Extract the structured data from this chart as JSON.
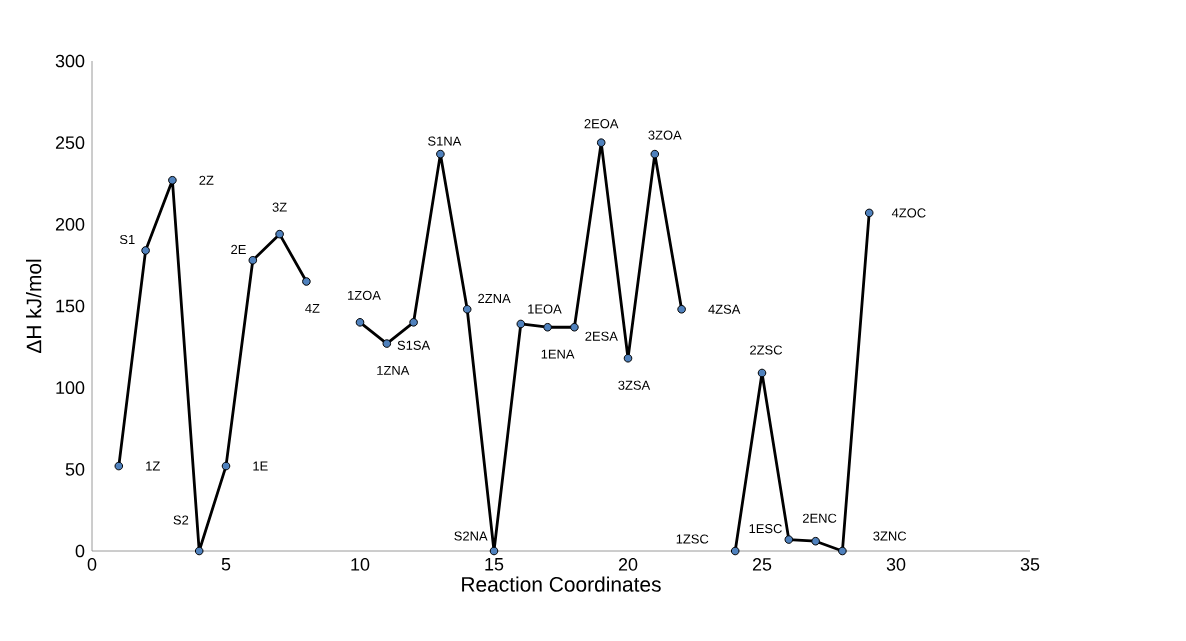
{
  "chart_data": {
    "type": "line",
    "xlabel": "Reaction Coordinates",
    "ylabel": "ΔH kJ/mol",
    "x": [
      1,
      2,
      3,
      4,
      5,
      6,
      7,
      8,
      9,
      10,
      11,
      12,
      13,
      14,
      15,
      16,
      17,
      18,
      19,
      20,
      21,
      22,
      23,
      24,
      25,
      26,
      27,
      28,
      29
    ],
    "values": [
      52,
      184,
      227,
      0,
      52,
      178,
      194,
      165,
      null,
      140,
      127,
      140,
      243,
      148,
      0,
      139,
      137,
      137,
      250,
      118,
      243,
      148,
      null,
      0,
      109,
      7,
      6,
      0,
      207
    ],
    "color": "#000000",
    "marker": "circle",
    "xlim": [
      0,
      35
    ],
    "ylim": [
      0,
      300
    ],
    "xticks": [
      0,
      5,
      10,
      15,
      20,
      25,
      30,
      35
    ],
    "yticks": [
      0,
      50,
      100,
      150,
      200,
      250,
      300
    ],
    "annotations": [
      {
        "text": "1Z",
        "x": 1,
        "y": 52
      },
      {
        "text": "S1",
        "x": 2,
        "y": 184
      },
      {
        "text": "2Z",
        "x": 3,
        "y": 227
      },
      {
        "text": "S2",
        "x": 4,
        "y": 0
      },
      {
        "text": "1E",
        "x": 5,
        "y": 52
      },
      {
        "text": "2E",
        "x": 6,
        "y": 178
      },
      {
        "text": "3Z",
        "x": 7,
        "y": 194
      },
      {
        "text": "4Z",
        "x": 8,
        "y": 165
      },
      {
        "text": "1ZOA",
        "x": 10,
        "y": 140
      },
      {
        "text": "1ZNA",
        "x": 11,
        "y": 127
      },
      {
        "text": "S1SA",
        "x": 12,
        "y": 140
      },
      {
        "text": "S1NA",
        "x": 13,
        "y": 243
      },
      {
        "text": "2ZNA",
        "x": 14,
        "y": 148
      },
      {
        "text": "S2NA",
        "x": 15,
        "y": 0
      },
      {
        "text": "1EOA",
        "x": 16,
        "y": 139
      },
      {
        "text": "1ENA",
        "x": 17,
        "y": 137
      },
      {
        "text": "2ESA",
        "x": 18,
        "y": 137
      },
      {
        "text": "2EOA",
        "x": 19,
        "y": 250
      },
      {
        "text": "3ZSA",
        "x": 20,
        "y": 118
      },
      {
        "text": "3ZOA",
        "x": 21,
        "y": 243
      },
      {
        "text": "4ZSA",
        "x": 22,
        "y": 148
      },
      {
        "text": "1ZSC",
        "x": 24,
        "y": 0
      },
      {
        "text": "2ZSC",
        "x": 25,
        "y": 109
      },
      {
        "text": "1ESC",
        "x": 26,
        "y": 7
      },
      {
        "text": "2ENC",
        "x": 27,
        "y": 6
      },
      {
        "text": "3ZNC",
        "x": 28,
        "y": 0
      },
      {
        "text": "4ZOC",
        "x": 29,
        "y": 207
      }
    ]
  }
}
